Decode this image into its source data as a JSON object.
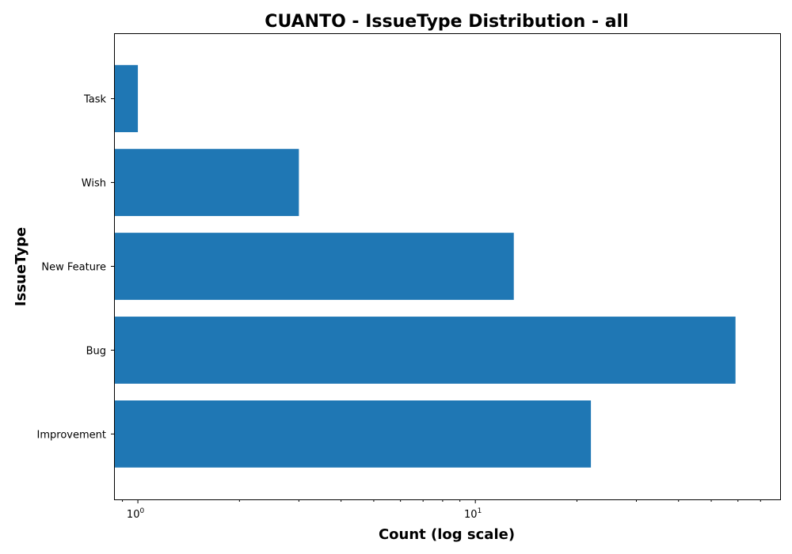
{
  "chart_data": {
    "type": "bar",
    "orientation": "horizontal",
    "title": "CUANTO - IssueType Distribution - all",
    "xlabel": "Count (log scale)",
    "ylabel": "IssueType",
    "x_scale": "log",
    "xlim": [
      0.85,
      80
    ],
    "x_ticks": [
      {
        "value": 1,
        "base": "10",
        "exp": "0"
      },
      {
        "value": 10,
        "base": "10",
        "exp": "1"
      }
    ],
    "categories": [
      "Improvement",
      "Bug",
      "New Feature",
      "Wish",
      "Task"
    ],
    "values": [
      22,
      59,
      13,
      3,
      1
    ],
    "bar_color": "#1f77b4",
    "grid": false,
    "legend": "none"
  }
}
